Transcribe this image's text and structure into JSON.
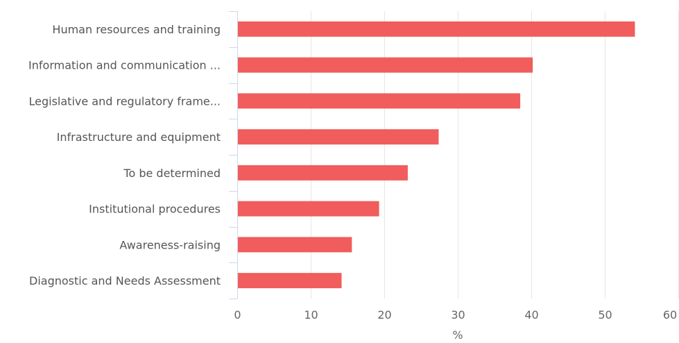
{
  "chart_data": {
    "type": "bar",
    "orientation": "horizontal",
    "categories": [
      "Human resources and training",
      "Information and communication ...",
      "Legislative and regulatory frame...",
      "Infrastructure and equipment",
      "To be determined",
      "Institutional procedures",
      "Awareness-raising",
      "Diagnostic and Needs Assessment"
    ],
    "values": [
      54.1,
      40.2,
      38.5,
      27.4,
      23.2,
      19.3,
      15.6,
      14.2
    ],
    "xlabel": "%",
    "ylabel": "",
    "xlim": [
      0,
      60
    ],
    "xticks": [
      "0",
      "10",
      "20",
      "30",
      "40",
      "50",
      "60"
    ],
    "grid": true,
    "bar_color": "#f15c5c",
    "grid_color": "#e6e6e6",
    "axis_color": "#ccd6eb"
  }
}
